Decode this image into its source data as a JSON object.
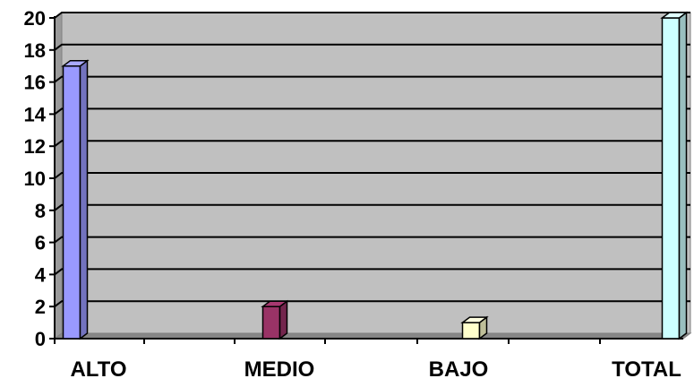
{
  "chart_data": {
    "type": "bar",
    "style": "3d-column",
    "categories": [
      "ALTO",
      "MEDIO",
      "BAJO",
      "TOTAL"
    ],
    "values": [
      17,
      2,
      1,
      20
    ],
    "ylim": [
      0,
      20
    ],
    "yticks": [
      "0",
      "2",
      "4",
      "6",
      "8",
      "10",
      "12",
      "14",
      "16",
      "18",
      "20"
    ],
    "grid": true,
    "legend": "none",
    "title": "",
    "xlabel": "",
    "ylabel": "",
    "colors": {
      "plot_background": "#c0c0c0",
      "gridline": "#000000",
      "bars": [
        "#9999ff",
        "#993366",
        "#ffffcc",
        "#ccffff"
      ]
    }
  }
}
